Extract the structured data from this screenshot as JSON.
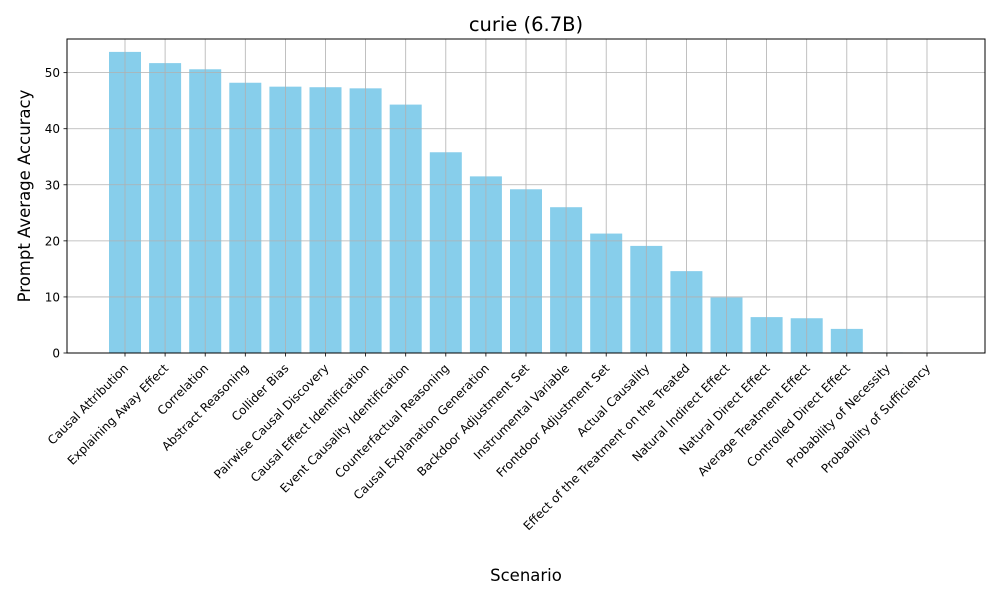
{
  "chart_data": {
    "type": "bar",
    "title": "curie (6.7B)",
    "xlabel": "Scenario",
    "ylabel": "Prompt Average Accuracy",
    "ylim": [
      0,
      56
    ],
    "yticks": [
      0,
      10,
      20,
      30,
      40,
      50
    ],
    "grid": true,
    "bar_color": "#87ceeb",
    "grid_color": "#b0b0b0",
    "categories": [
      "Causal Attribution",
      "Explaining Away Effect",
      "Correlation",
      "Abstract Reasoning",
      "Collider Bias",
      "Pairwise Causal Discovery",
      "Causal Effect Identification",
      "Event Causality Identification",
      "Counterfactual Reasoning",
      "Causal Explanation Generation",
      "Backdoor Adjustment Set",
      "Instrumental Variable",
      "Frontdoor Adjustment Set",
      "Actual Causality",
      "Effect of the Treatment on the Treated",
      "Natural Indirect Effect",
      "Natural Direct Effect",
      "Average Treatment Effect",
      "Controlled Direct Effect",
      "Probability of Necessity",
      "Probability of Sufficiency"
    ],
    "values": [
      53.7,
      51.7,
      50.6,
      48.2,
      47.5,
      47.4,
      47.2,
      44.3,
      35.8,
      31.5,
      29.2,
      26.0,
      21.3,
      19.1,
      14.6,
      9.9,
      6.4,
      6.2,
      4.3,
      0.1,
      0.0
    ]
  }
}
